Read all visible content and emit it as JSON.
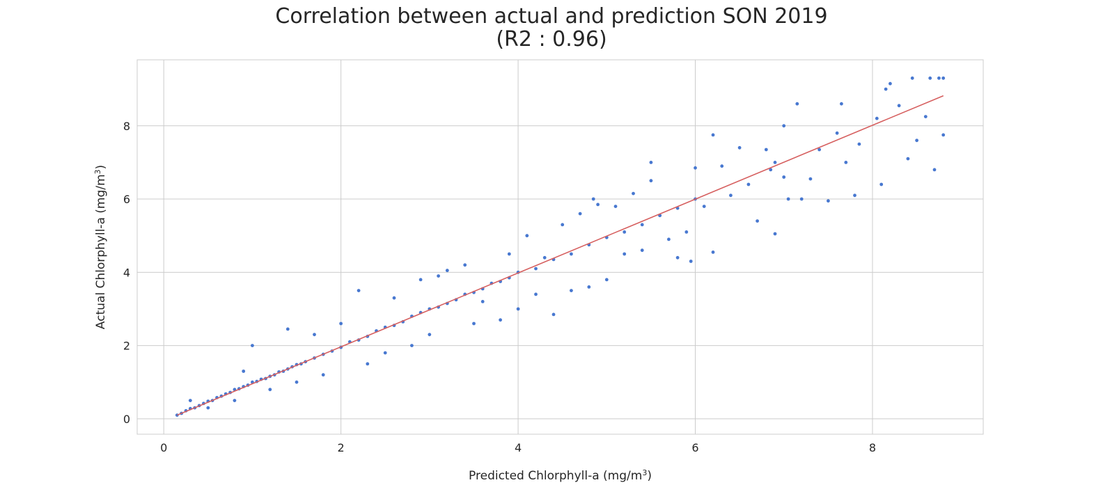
{
  "chart_data": {
    "type": "scatter",
    "title": "Correlation between actual and prediction SON 2019",
    "subtitle": "(R2 : 0.96)",
    "xlabel": "Predicted Chlorphyll-a (mg/m",
    "ylabel": "Actual Chlorphyll-a (mg/m",
    "unit_superscript": "3",
    "xlim": [
      -0.3,
      9.25
    ],
    "ylim": [
      -0.42,
      9.8
    ],
    "xticks": [
      0,
      2,
      4,
      6,
      8
    ],
    "yticks": [
      0,
      2,
      4,
      6,
      8
    ],
    "grid": true,
    "series": [
      {
        "values_note": "",
        "points": [
          [
            0.15,
            0.1
          ],
          [
            0.2,
            0.15
          ],
          [
            0.25,
            0.22
          ],
          [
            0.3,
            0.28
          ],
          [
            0.35,
            0.3
          ],
          [
            0.4,
            0.36
          ],
          [
            0.45,
            0.42
          ],
          [
            0.5,
            0.48
          ],
          [
            0.55,
            0.5
          ],
          [
            0.6,
            0.58
          ],
          [
            0.65,
            0.62
          ],
          [
            0.7,
            0.68
          ],
          [
            0.75,
            0.72
          ],
          [
            0.8,
            0.8
          ],
          [
            0.85,
            0.82
          ],
          [
            0.9,
            0.88
          ],
          [
            0.95,
            0.92
          ],
          [
            1.0,
            1.0
          ],
          [
            1.05,
            1.02
          ],
          [
            1.1,
            1.08
          ],
          [
            1.15,
            1.1
          ],
          [
            1.2,
            1.16
          ],
          [
            1.25,
            1.2
          ],
          [
            1.3,
            1.28
          ],
          [
            1.35,
            1.3
          ],
          [
            1.4,
            1.36
          ],
          [
            1.45,
            1.42
          ],
          [
            1.5,
            1.48
          ],
          [
            1.55,
            1.5
          ],
          [
            1.6,
            1.56
          ],
          [
            1.7,
            1.66
          ],
          [
            1.8,
            1.76
          ],
          [
            1.9,
            1.85
          ],
          [
            2.0,
            1.95
          ],
          [
            2.1,
            2.1
          ],
          [
            2.2,
            2.15
          ],
          [
            2.3,
            2.25
          ],
          [
            2.4,
            2.4
          ],
          [
            2.5,
            2.5
          ],
          [
            2.6,
            2.55
          ],
          [
            2.7,
            2.65
          ],
          [
            2.8,
            2.8
          ],
          [
            2.9,
            2.9
          ],
          [
            3.0,
            3.0
          ],
          [
            3.1,
            3.05
          ],
          [
            3.2,
            3.15
          ],
          [
            3.3,
            3.25
          ],
          [
            3.4,
            3.4
          ],
          [
            3.5,
            3.45
          ],
          [
            3.6,
            3.55
          ],
          [
            3.7,
            3.7
          ],
          [
            3.8,
            3.75
          ],
          [
            3.9,
            3.85
          ],
          [
            4.0,
            4.0
          ],
          [
            4.2,
            4.1
          ],
          [
            4.4,
            4.35
          ],
          [
            4.6,
            4.5
          ],
          [
            4.8,
            4.75
          ],
          [
            5.0,
            4.95
          ],
          [
            5.2,
            5.1
          ],
          [
            5.4,
            5.3
          ],
          [
            5.6,
            5.55
          ],
          [
            5.8,
            5.75
          ],
          [
            6.0,
            6.0
          ],
          [
            0.3,
            0.5
          ],
          [
            0.5,
            0.3
          ],
          [
            0.8,
            0.5
          ],
          [
            0.9,
            1.3
          ],
          [
            1.0,
            2.0
          ],
          [
            1.2,
            0.8
          ],
          [
            1.4,
            2.45
          ],
          [
            1.5,
            1.0
          ],
          [
            1.7,
            2.3
          ],
          [
            1.8,
            1.2
          ],
          [
            2.0,
            2.6
          ],
          [
            2.2,
            3.5
          ],
          [
            2.3,
            1.5
          ],
          [
            2.5,
            1.8
          ],
          [
            2.6,
            3.3
          ],
          [
            2.8,
            2.0
          ],
          [
            2.9,
            3.8
          ],
          [
            3.0,
            2.3
          ],
          [
            3.1,
            3.9
          ],
          [
            3.2,
            4.05
          ],
          [
            3.4,
            4.2
          ],
          [
            3.5,
            2.6
          ],
          [
            3.6,
            3.2
          ],
          [
            3.8,
            2.7
          ],
          [
            3.9,
            4.5
          ],
          [
            4.0,
            3.0
          ],
          [
            4.1,
            5.0
          ],
          [
            4.2,
            3.4
          ],
          [
            4.3,
            4.4
          ],
          [
            4.4,
            2.85
          ],
          [
            4.5,
            5.3
          ],
          [
            4.6,
            3.5
          ],
          [
            4.7,
            5.6
          ],
          [
            4.8,
            3.6
          ],
          [
            4.85,
            6.0
          ],
          [
            5.0,
            3.8
          ],
          [
            5.1,
            5.8
          ],
          [
            5.2,
            4.5
          ],
          [
            5.3,
            6.15
          ],
          [
            5.4,
            4.6
          ],
          [
            5.5,
            7.0
          ],
          [
            5.6,
            5.55
          ],
          [
            5.7,
            4.9
          ],
          [
            5.8,
            4.4
          ],
          [
            5.9,
            5.1
          ],
          [
            5.95,
            4.3
          ],
          [
            6.0,
            6.85
          ],
          [
            6.1,
            5.8
          ],
          [
            6.2,
            7.75
          ],
          [
            6.2,
            4.55
          ],
          [
            6.3,
            6.9
          ],
          [
            6.4,
            6.1
          ],
          [
            6.5,
            7.4
          ],
          [
            6.6,
            6.4
          ],
          [
            6.7,
            5.4
          ],
          [
            6.8,
            7.35
          ],
          [
            6.85,
            6.8
          ],
          [
            6.9,
            5.05
          ],
          [
            7.0,
            6.6
          ],
          [
            7.05,
            6.0
          ],
          [
            7.15,
            8.6
          ],
          [
            7.2,
            6.0
          ],
          [
            7.3,
            6.55
          ],
          [
            7.4,
            7.35
          ],
          [
            7.5,
            5.95
          ],
          [
            7.6,
            7.8
          ],
          [
            7.65,
            8.6
          ],
          [
            7.7,
            7.0
          ],
          [
            7.8,
            6.1
          ],
          [
            7.85,
            7.5
          ],
          [
            8.05,
            8.2
          ],
          [
            8.1,
            6.4
          ],
          [
            8.15,
            9.0
          ],
          [
            8.2,
            9.15
          ],
          [
            8.3,
            8.55
          ],
          [
            8.4,
            7.1
          ],
          [
            8.45,
            9.3
          ],
          [
            8.5,
            7.6
          ],
          [
            8.6,
            8.25
          ],
          [
            8.7,
            6.8
          ],
          [
            8.75,
            9.3
          ],
          [
            8.8,
            7.75
          ],
          [
            8.8,
            9.3
          ],
          [
            8.65,
            9.3
          ],
          [
            7.0,
            8.0
          ],
          [
            6.9,
            7.0
          ],
          [
            5.5,
            6.5
          ],
          [
            4.9,
            5.85
          ]
        ]
      },
      {
        "fit_line": [
          [
            0.15,
            0.1
          ],
          [
            8.8,
            8.82
          ]
        ]
      }
    ],
    "colors": {
      "points": "#4878d0",
      "fit_line": "#d65f5f",
      "grid": "#cccccc",
      "frame": "#cccccc"
    }
  }
}
